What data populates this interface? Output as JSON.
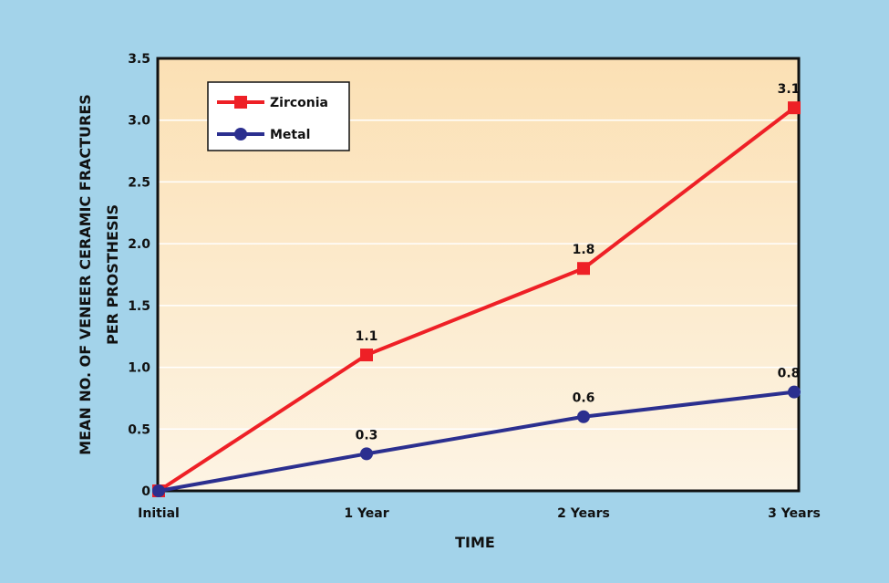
{
  "chart_data": {
    "type": "line",
    "title": "",
    "xlabel": "TIME",
    "ylabel_lines": [
      "MEAN NO. OF VENEER CERAMIC FRACTURES",
      "PER PROSTHESIS"
    ],
    "categories": [
      "Initial",
      "1 Year",
      "2 Years",
      "3 Years"
    ],
    "ylim": [
      0,
      3.5
    ],
    "y_ticks": [
      0,
      0.5,
      1.0,
      1.5,
      2.0,
      2.5,
      3.0,
      3.5
    ],
    "y_tick_labels": [
      "0",
      "0.5",
      "1.0",
      "1.5",
      "2.0",
      "2.5",
      "3.0",
      "3.5"
    ],
    "grid": "horizontal",
    "legend_position": "top-left",
    "series": [
      {
        "name": "Zirconia",
        "color": "#ee2026",
        "marker": "square",
        "values": [
          0,
          1.1,
          1.8,
          3.1
        ],
        "labels": [
          "",
          "1.1",
          "1.8",
          "3.1"
        ]
      },
      {
        "name": "Metal",
        "color": "#2b2f8f",
        "marker": "circle",
        "values": [
          0,
          0.3,
          0.6,
          0.8
        ],
        "labels": [
          "",
          "0.3",
          "0.6",
          "0.8"
        ]
      }
    ]
  }
}
